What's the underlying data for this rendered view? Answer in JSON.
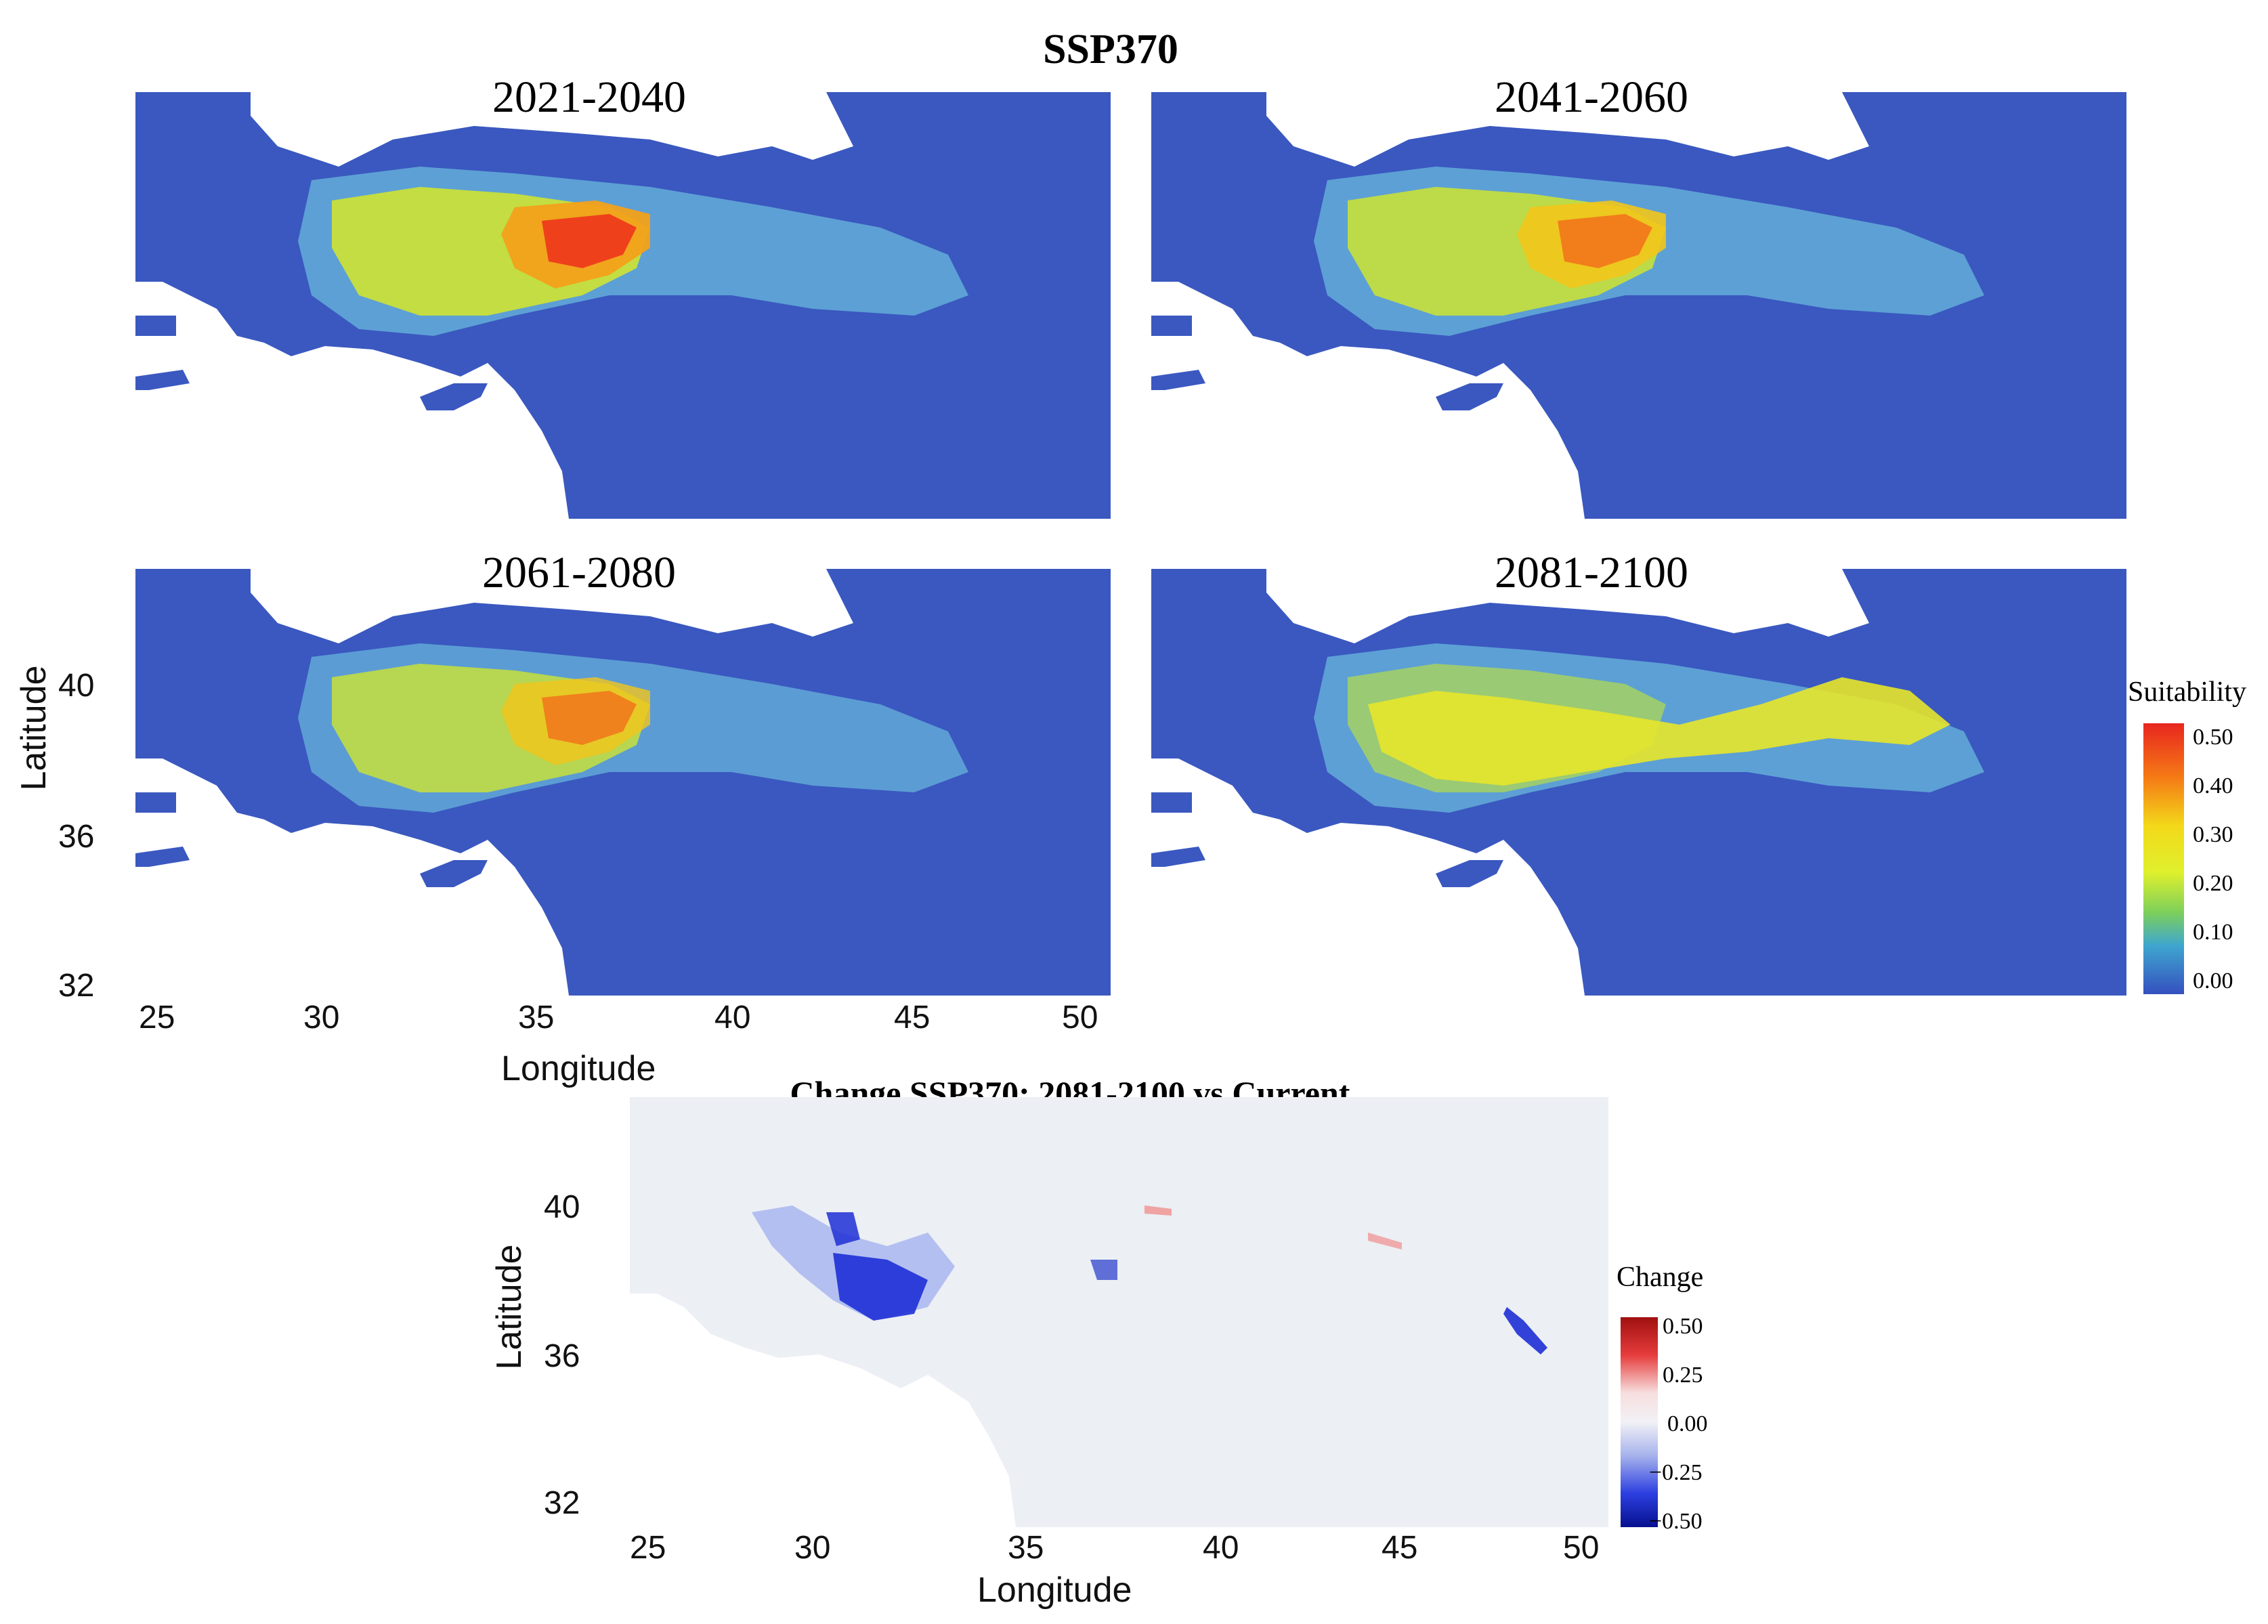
{
  "figure": {
    "title": "SSP370",
    "panels": [
      {
        "id": "p1",
        "label": "2021-2040",
        "hot_level": 0.5
      },
      {
        "id": "p2",
        "label": "2041-2060",
        "hot_level": 0.42
      },
      {
        "id": "p3",
        "label": "2061-2080",
        "hot_level": 0.4
      },
      {
        "id": "p4",
        "label": "2081-2100",
        "hot_level": 0.3
      }
    ],
    "latitude_ticks": [
      "32",
      "36",
      "40"
    ],
    "longitude_ticks": [
      "25",
      "30",
      "35",
      "40",
      "45",
      "50"
    ],
    "xlabel": "Longitude",
    "ylabel": "Latitude"
  },
  "suitability_legend": {
    "title": "Suitability",
    "ticks": [
      "0.50",
      "0.40",
      "0.30",
      "0.20",
      "0.10",
      "0.00"
    ],
    "colors": [
      "#e8261f",
      "#f57a15",
      "#f3b91a",
      "#f2f220",
      "#a0d84a",
      "#3fb0c8",
      "#3565c8",
      "#3550bf"
    ]
  },
  "change_map": {
    "title": "Change SSP370: 2081-2100 vs Current",
    "latitude_ticks": [
      "32",
      "36",
      "40"
    ],
    "longitude_ticks": [
      "25",
      "30",
      "35",
      "40",
      "45",
      "50"
    ],
    "xlabel": "Longitude",
    "ylabel": "Latitude"
  },
  "change_legend": {
    "title": "Change",
    "ticks": [
      "0.50",
      "0.25",
      "0.00",
      "−0.25",
      "−0.50"
    ],
    "colors": [
      "#a01010",
      "#e63c3c",
      "#f7dede",
      "#f1f1f6",
      "#a6b2ec",
      "#2c3fe0",
      "#06108e"
    ]
  },
  "colors": {
    "sea": "#ffffff",
    "land_base": "#3a58c0",
    "change_base": "#eceff4"
  }
}
